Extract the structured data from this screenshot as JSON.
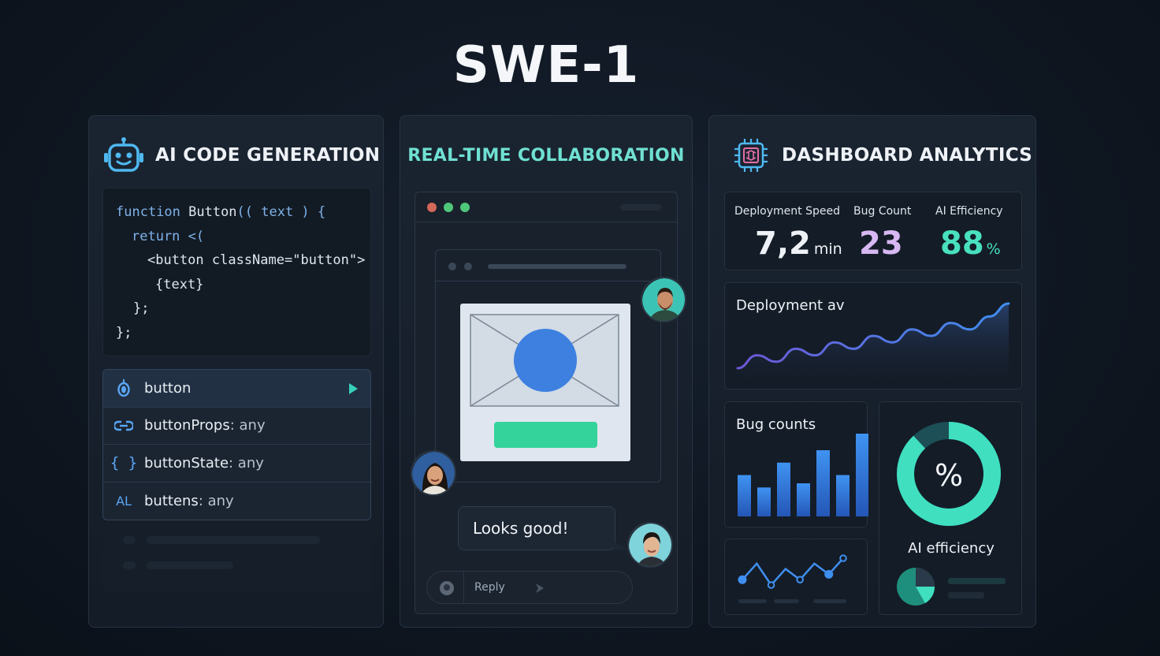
{
  "header": {
    "title": "SWE-1"
  },
  "code_panel": {
    "title": "AI CODE GENERATION",
    "icon": "robot-icon",
    "code": {
      "line1_kw": "function",
      "line1_name": " Button",
      "line1_rest": "(( text ) {",
      "line2_kw": "return",
      "line2_rest": " <(",
      "line3": "<button className=\"button\">",
      "line4": "{text}",
      "line5": "};",
      "line6": "};"
    },
    "suggestions": [
      {
        "icon": "variable-icon",
        "name": "button",
        "type": ""
      },
      {
        "icon": "link-icon",
        "name": "buttonProps",
        "type": ": any"
      },
      {
        "icon": "braces-icon",
        "name": "buttonState",
        "type": ": any"
      },
      {
        "icon": "ai-text-icon",
        "name": "buttens",
        "type": ": any",
        "icon_text": "AL"
      }
    ]
  },
  "collab_panel": {
    "title": "REAL-TIME COLLABORATION",
    "chat_message": "Looks good!",
    "reply_placeholder": "Reply",
    "window_dots": [
      "#d3685a",
      "#4fc77a",
      "#4fc77a"
    ]
  },
  "analytics_panel": {
    "title": "DASHBOARD ANALYTICS",
    "icon": "chip-icon",
    "kpis": [
      {
        "label": "Deployment Speed",
        "value": "7,2",
        "unit": "min",
        "color": "#eef2f7"
      },
      {
        "label": "Bug Count",
        "value": "23",
        "unit": "",
        "color": "#d7b8f3"
      },
      {
        "label": "AI Efficiency",
        "value": "88",
        "unit": "%",
        "color": "#48e0bf"
      }
    ],
    "deployment_chart": {
      "title": "Deployment av",
      "values": [
        2,
        4,
        3,
        5,
        4,
        6,
        5,
        7,
        6,
        8,
        7,
        9,
        8,
        10,
        12
      ]
    },
    "bug_chart": {
      "title": "Bug counts",
      "values": [
        5,
        3.5,
        6.5,
        4,
        8,
        5,
        10
      ]
    },
    "small_line_chart": {
      "values": [
        3,
        6,
        2,
        5,
        3,
        6,
        4,
        7
      ]
    },
    "efficiency": {
      "label": "AI efficiency",
      "symbol": "%",
      "value": 88
    }
  }
}
